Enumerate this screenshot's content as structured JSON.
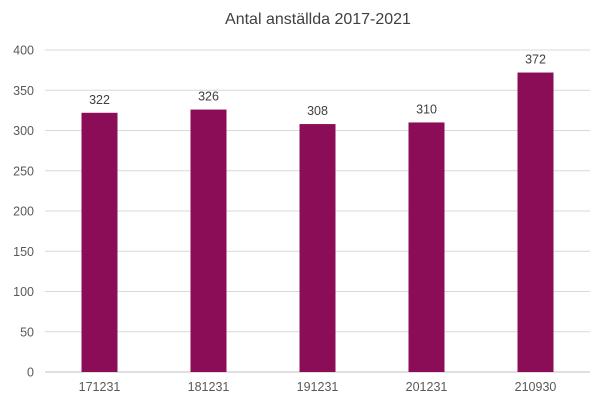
{
  "chart_data": {
    "type": "bar",
    "title": "Antal anställda 2017-2021",
    "xlabel": "",
    "ylabel": "",
    "categories": [
      "171231",
      "181231",
      "191231",
      "201231",
      "210930"
    ],
    "values": [
      322,
      326,
      308,
      310,
      372
    ],
    "ylim": [
      0,
      400
    ],
    "yticks": [
      0,
      50,
      100,
      150,
      200,
      250,
      300,
      350,
      400
    ],
    "grid": true,
    "legend": "none",
    "bar_color": "#8B0D57"
  }
}
